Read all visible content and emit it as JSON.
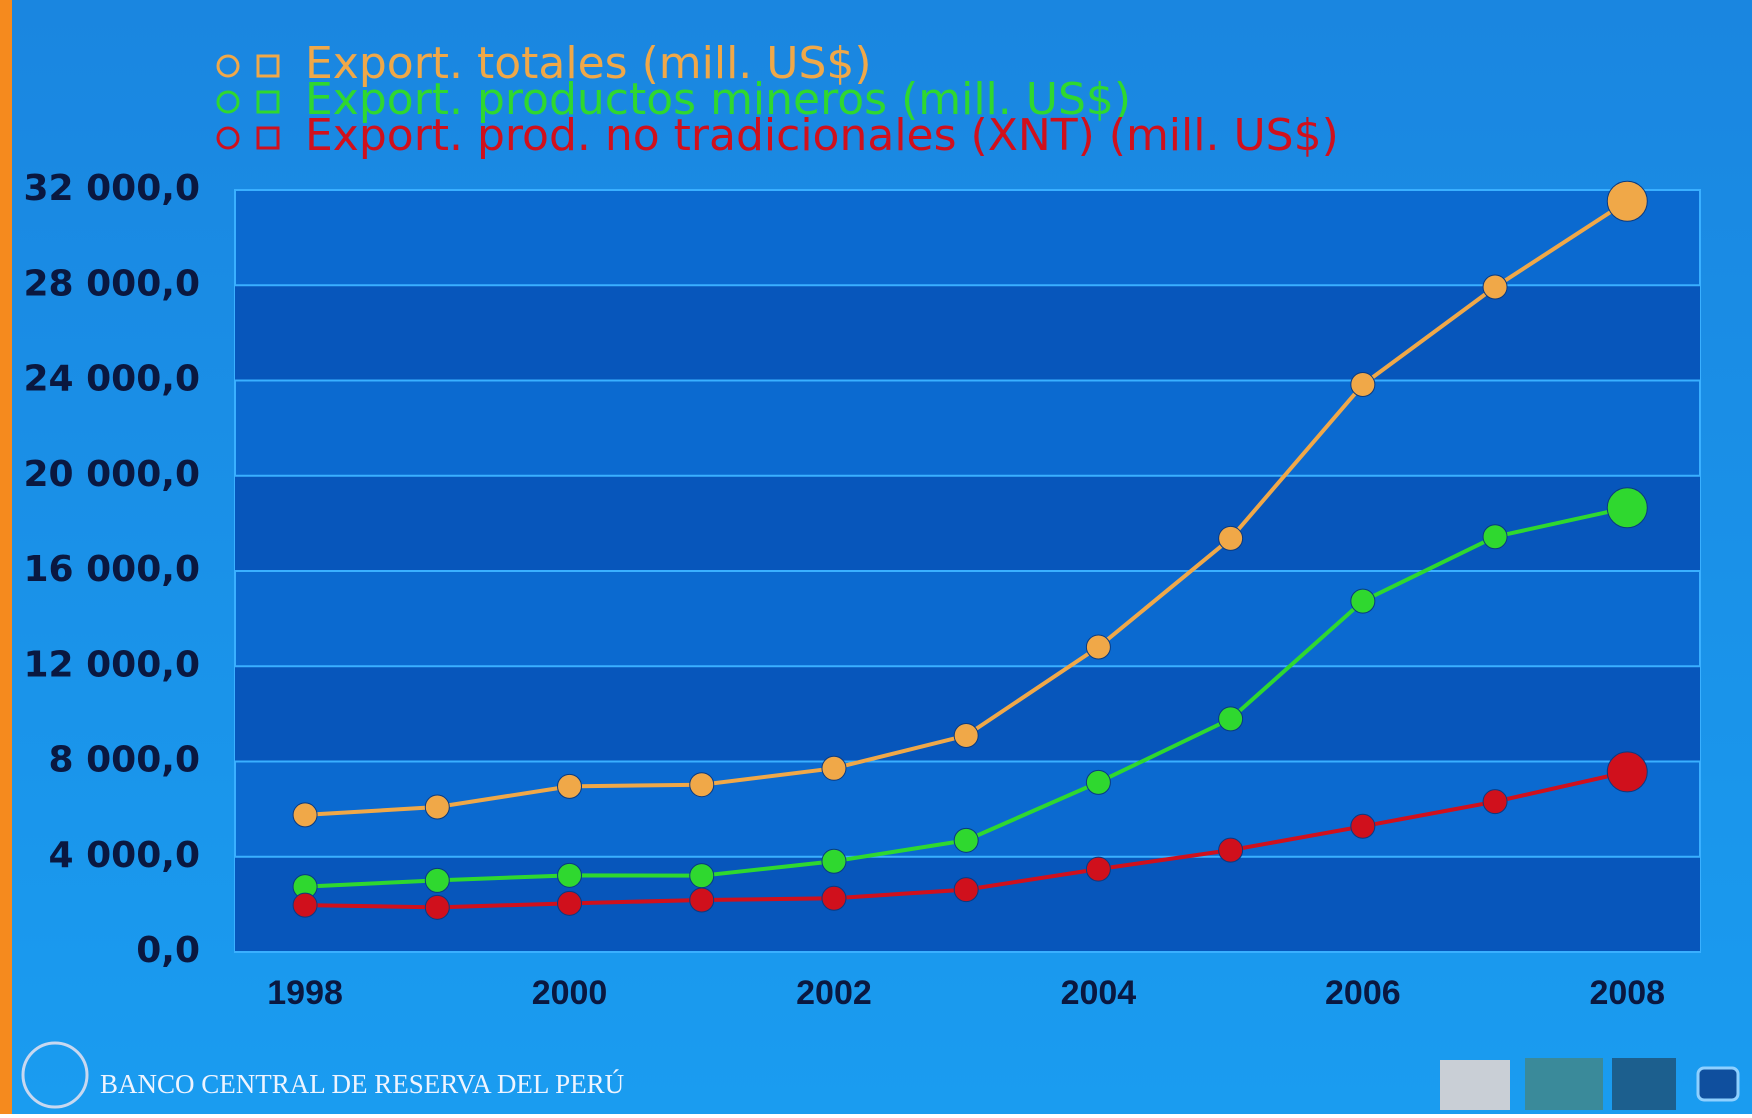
{
  "chart_data": {
    "type": "line",
    "x": [
      1998,
      1999,
      2000,
      2001,
      2002,
      2003,
      2004,
      2005,
      2006,
      2007,
      2008
    ],
    "xlim": [
      1997.47,
      2008.55
    ],
    "xticks": [
      1998,
      2000,
      2002,
      2004,
      2006,
      2008
    ],
    "ylim": [
      0,
      32000
    ],
    "yticks": [
      {
        "value": 0,
        "label": "0,0"
      },
      {
        "value": 4000,
        "label": "4 000,0"
      },
      {
        "value": 8000,
        "label": "8 000,0"
      },
      {
        "value": 12000,
        "label": "12 000,0"
      },
      {
        "value": 16000,
        "label": "16 000,0"
      },
      {
        "value": 20000,
        "label": "20 000,0"
      },
      {
        "value": 24000,
        "label": "24 000,0"
      },
      {
        "value": 28000,
        "label": "28 000,0"
      },
      {
        "value": 32000,
        "label": "32 000,0"
      }
    ],
    "grid": true,
    "series": [
      {
        "name": "Export. totales (mill. US$)",
        "color": "#f0a848",
        "values": [
          5757,
          6088,
          6955,
          7026,
          7714,
          9091,
          12809,
          17368,
          23830,
          27926,
          31529
        ]
      },
      {
        "name": "Export. productos mineros (mill. US$)",
        "color": "#2fd82f",
        "values": [
          2747,
          3008,
          3220,
          3205,
          3809,
          4690,
          7124,
          9790,
          14735,
          17439,
          18657
        ]
      },
      {
        "name": "Export. prod. no tradicionales (XNT) (mill. US$)",
        "color": "#d0101c",
        "values": [
          1967,
          1876,
          2044,
          2183,
          2256,
          2620,
          3479,
          4277,
          5279,
          6313,
          7562
        ]
      }
    ]
  },
  "footer": "BANCO CENTRAL DE RESERVA DEL PERÚ"
}
